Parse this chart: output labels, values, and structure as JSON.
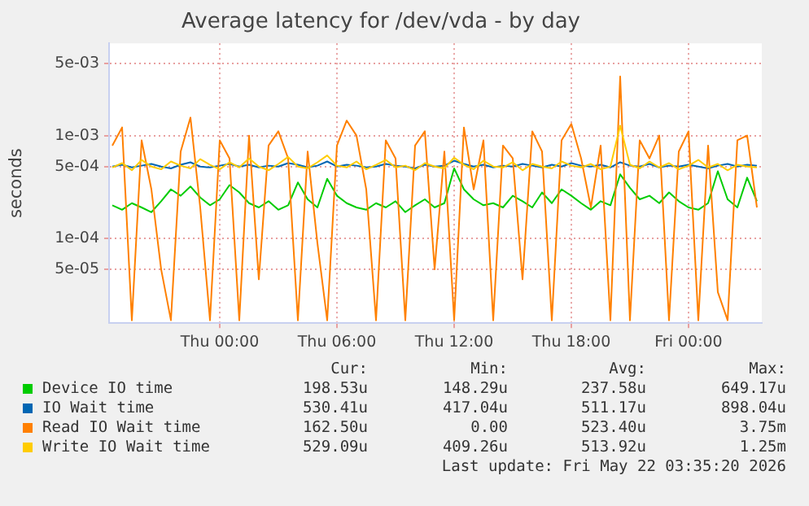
{
  "chart_data": {
    "type": "line",
    "title": "Average latency for /dev/vda - by day",
    "ylabel": "seconds",
    "log": true,
    "grid": true,
    "legend": "bottom",
    "marker": "none",
    "line_style": "solid",
    "xlim": [
      "2026-05-20T18:20",
      "2026-05-22T03:45"
    ],
    "xticks": [
      {
        "value": "2026-05-21T00:00",
        "label": "Thu 00:00"
      },
      {
        "value": "2026-05-21T06:00",
        "label": "Thu 06:00"
      },
      {
        "value": "2026-05-21T12:00",
        "label": "Thu 12:00"
      },
      {
        "value": "2026-05-21T18:00",
        "label": "Thu 18:00"
      },
      {
        "value": "2026-05-22T00:00",
        "label": "Fri 00:00"
      }
    ],
    "ylim": [
      1.5e-05,
      0.0079
    ],
    "yticks": [
      {
        "value": 5e-05,
        "label": "5e-05"
      },
      {
        "value": 0.0001,
        "label": "1e-04"
      },
      {
        "value": 0.0005,
        "label": "5e-04"
      },
      {
        "value": 0.001,
        "label": "1e-03"
      },
      {
        "value": 0.005,
        "label": "5e-03"
      }
    ],
    "x": [
      "2026-05-20T18:30",
      "2026-05-20T19:00",
      "2026-05-20T19:30",
      "2026-05-20T20:00",
      "2026-05-20T20:30",
      "2026-05-20T21:00",
      "2026-05-20T21:30",
      "2026-05-20T22:00",
      "2026-05-20T22:30",
      "2026-05-20T23:00",
      "2026-05-20T23:30",
      "2026-05-21T00:00",
      "2026-05-21T00:30",
      "2026-05-21T01:00",
      "2026-05-21T01:30",
      "2026-05-21T02:00",
      "2026-05-21T02:30",
      "2026-05-21T03:00",
      "2026-05-21T03:30",
      "2026-05-21T04:00",
      "2026-05-21T04:30",
      "2026-05-21T05:00",
      "2026-05-21T05:30",
      "2026-05-21T06:00",
      "2026-05-21T06:30",
      "2026-05-21T07:00",
      "2026-05-21T07:30",
      "2026-05-21T08:00",
      "2026-05-21T08:30",
      "2026-05-21T09:00",
      "2026-05-21T09:30",
      "2026-05-21T10:00",
      "2026-05-21T10:30",
      "2026-05-21T11:00",
      "2026-05-21T11:30",
      "2026-05-21T12:00",
      "2026-05-21T12:30",
      "2026-05-21T13:00",
      "2026-05-21T13:30",
      "2026-05-21T14:00",
      "2026-05-21T14:30",
      "2026-05-21T15:00",
      "2026-05-21T15:30",
      "2026-05-21T16:00",
      "2026-05-21T16:30",
      "2026-05-21T17:00",
      "2026-05-21T17:30",
      "2026-05-21T18:00",
      "2026-05-21T18:30",
      "2026-05-21T19:00",
      "2026-05-21T19:30",
      "2026-05-21T20:00",
      "2026-05-21T20:30",
      "2026-05-21T21:00",
      "2026-05-21T21:30",
      "2026-05-21T22:00",
      "2026-05-21T22:30",
      "2026-05-21T23:00",
      "2026-05-21T23:30",
      "2026-05-22T00:00",
      "2026-05-22T00:30",
      "2026-05-22T01:00",
      "2026-05-22T01:30",
      "2026-05-22T02:00",
      "2026-05-22T02:30",
      "2026-05-22T03:00",
      "2026-05-22T03:30"
    ],
    "series": [
      {
        "name": "Device IO time",
        "color": "#00cc00",
        "values": [
          0.00021,
          0.00019,
          0.00022,
          0.0002,
          0.00018,
          0.00023,
          0.0003,
          0.00026,
          0.00032,
          0.00025,
          0.00021,
          0.00024,
          0.00033,
          0.00028,
          0.00022,
          0.0002,
          0.00023,
          0.00019,
          0.00021,
          0.00035,
          0.00024,
          0.0002,
          0.00038,
          0.00026,
          0.00022,
          0.0002,
          0.00019,
          0.00022,
          0.0002,
          0.00023,
          0.00018,
          0.00021,
          0.00024,
          0.0002,
          0.00022,
          0.00048,
          0.0003,
          0.00024,
          0.00021,
          0.00022,
          0.0002,
          0.00026,
          0.00023,
          0.0002,
          0.00028,
          0.00022,
          0.0003,
          0.00026,
          0.00022,
          0.00019,
          0.00023,
          0.00021,
          0.00042,
          0.00031,
          0.00024,
          0.00026,
          0.00022,
          0.00028,
          0.00023,
          0.0002,
          0.00019,
          0.00022,
          0.00045,
          0.00024,
          0.0002,
          0.00039,
          0.00023
        ]
      },
      {
        "name": "IO Wait time",
        "color": "#0066b3",
        "values": [
          0.0005,
          0.00052,
          0.00049,
          0.00051,
          0.00053,
          0.0005,
          0.00048,
          0.00052,
          0.00055,
          0.0005,
          0.00049,
          0.00051,
          0.00053,
          0.0005,
          0.00052,
          0.00049,
          0.00051,
          0.0005,
          0.00054,
          0.00052,
          0.00049,
          0.00051,
          0.00056,
          0.0005,
          0.00052,
          0.00051,
          0.00049,
          0.0005,
          0.00053,
          0.00051,
          0.0005,
          0.00048,
          0.00052,
          0.0005,
          0.00051,
          0.00057,
          0.00053,
          0.0005,
          0.00052,
          0.00049,
          0.00051,
          0.0005,
          0.00053,
          0.00051,
          0.00049,
          0.00052,
          0.0005,
          0.00054,
          0.00051,
          0.0005,
          0.00052,
          0.00049,
          0.00055,
          0.00051,
          0.0005,
          0.00053,
          0.00049,
          0.00051,
          0.0005,
          0.00052,
          0.0005,
          0.00048,
          0.00051,
          0.00053,
          0.0005,
          0.00052,
          0.00051
        ]
      },
      {
        "name": "Read IO Wait time",
        "color": "#ff8000",
        "values": [
          0.0008,
          0.0012,
          1.6e-05,
          0.0009,
          0.0003,
          5e-05,
          1.6e-05,
          0.0007,
          0.0015,
          0.0002,
          1.6e-05,
          0.0009,
          0.0006,
          1.6e-05,
          0.001,
          4e-05,
          0.0008,
          0.0011,
          0.0006,
          1.6e-05,
          0.0007,
          9e-05,
          1.6e-05,
          0.0008,
          0.0014,
          0.001,
          0.0003,
          1.6e-05,
          0.0009,
          0.0006,
          1.6e-05,
          0.0008,
          0.0011,
          5e-05,
          0.0007,
          1.6e-05,
          0.0012,
          0.0003,
          0.0009,
          1.6e-05,
          0.0008,
          0.0006,
          4e-05,
          0.0011,
          0.0007,
          1.6e-05,
          0.0009,
          0.0013,
          0.0006,
          0.0002,
          0.0008,
          1.6e-05,
          0.00375,
          1.6e-05,
          0.0009,
          0.0006,
          0.001,
          1.6e-05,
          0.0007,
          0.0011,
          1.6e-05,
          0.0008,
          3e-05,
          1.6e-05,
          0.0009,
          0.001,
          0.0002
        ]
      },
      {
        "name": "Write IO Wait time",
        "color": "#ffcc00",
        "values": [
          0.00049,
          0.00054,
          0.00046,
          0.00058,
          0.0005,
          0.00047,
          0.00056,
          0.00051,
          0.00048,
          0.00059,
          0.00052,
          0.00047,
          0.00055,
          0.00049,
          0.0006,
          0.0005,
          0.00046,
          0.00053,
          0.00062,
          0.0005,
          0.00048,
          0.00055,
          0.00064,
          0.00051,
          0.00049,
          0.00056,
          0.00047,
          0.00052,
          0.00058,
          0.00049,
          0.00051,
          0.00046,
          0.00054,
          0.0005,
          0.00048,
          0.00061,
          0.00052,
          0.00047,
          0.00057,
          0.0005,
          0.00049,
          0.00055,
          0.00046,
          0.00053,
          0.0005,
          0.00048,
          0.00056,
          0.00051,
          0.00049,
          0.00053,
          0.00047,
          0.0005,
          0.00125,
          0.00052,
          0.00048,
          0.00056,
          0.00049,
          0.00054,
          0.00047,
          0.00051,
          0.00058,
          0.00049,
          0.00053,
          0.00046,
          0.00052,
          0.0005,
          0.00049
        ]
      }
    ],
    "annotations": [
      "Cur:",
      "Min:",
      "Avg:",
      "Max:",
      "198.53u",
      "148.29u",
      "237.58u",
      "649.17u",
      "530.41u",
      "417.04u",
      "511.17u",
      "898.04u",
      "162.50u",
      "0.00",
      "523.40u",
      "3.75m",
      "529.09u",
      "409.26u",
      "513.92u",
      "1.25m",
      "Last update: Fri May 22 03:35:20 2026"
    ]
  }
}
